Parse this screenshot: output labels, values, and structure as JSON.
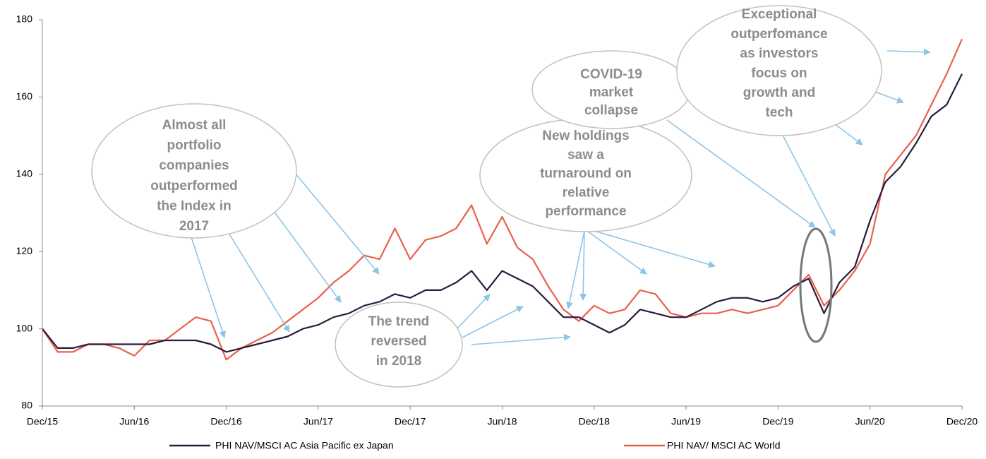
{
  "chart_data": {
    "type": "line",
    "categories": [
      "Dec/15",
      "Jan/16",
      "Feb/16",
      "Mar/16",
      "Apr/16",
      "May/16",
      "Jun/16",
      "Jul/16",
      "Aug/16",
      "Sep/16",
      "Oct/16",
      "Nov/16",
      "Dec/16",
      "Jan/17",
      "Feb/17",
      "Mar/17",
      "Apr/17",
      "May/17",
      "Jun/17",
      "Jul/17",
      "Aug/17",
      "Sep/17",
      "Oct/17",
      "Nov/17",
      "Dec/17",
      "Jan/18",
      "Feb/18",
      "Mar/18",
      "Apr/18",
      "May/18",
      "Jun/18",
      "Jul/18",
      "Aug/18",
      "Sep/18",
      "Oct/18",
      "Nov/18",
      "Dec/18",
      "Jan/19",
      "Feb/19",
      "Mar/19",
      "Apr/19",
      "May/19",
      "Jun/19",
      "Jul/19",
      "Aug/19",
      "Sep/19",
      "Oct/19",
      "Nov/19",
      "Dec/19",
      "Jan/20",
      "Feb/20",
      "Mar/20",
      "Apr/20",
      "May/20",
      "Jun/20",
      "Jul/20",
      "Aug/20",
      "Sep/20",
      "Oct/20",
      "Nov/20",
      "Dec/20"
    ],
    "series": [
      {
        "name": "PHI NAV/MSCI AC Asia Pacific ex Japan",
        "color": "#2b1a3d",
        "values": [
          100,
          95,
          95,
          96,
          96,
          96,
          96,
          96,
          97,
          97,
          97,
          96,
          94,
          95,
          96,
          97,
          98,
          100,
          101,
          103,
          104,
          106,
          107,
          109,
          108,
          110,
          110,
          112,
          115,
          110,
          115,
          113,
          111,
          107,
          103,
          103,
          101,
          99,
          101,
          105,
          104,
          103,
          103,
          105,
          107,
          108,
          108,
          107,
          108,
          111,
          113,
          104,
          112,
          116,
          128,
          138,
          142,
          148,
          155,
          158,
          166
        ]
      },
      {
        "name": "PHI NAV/ MSCI AC World",
        "color": "#e8604c",
        "values": [
          100,
          94,
          94,
          96,
          96,
          95,
          93,
          97,
          97,
          100,
          103,
          102,
          92,
          95,
          97,
          99,
          102,
          105,
          108,
          112,
          115,
          119,
          118,
          126,
          118,
          123,
          124,
          126,
          132,
          122,
          129,
          121,
          118,
          111,
          105,
          102,
          106,
          104,
          105,
          110,
          109,
          104,
          103,
          104,
          104,
          105,
          104,
          105,
          106,
          110,
          114,
          106,
          110,
          115,
          122,
          140,
          145,
          150,
          158,
          166,
          175
        ]
      }
    ],
    "xticks": [
      "Dec/15",
      "Jun/16",
      "Dec/16",
      "Jun/17",
      "Dec/17",
      "Jun/18",
      "Dec/18",
      "Jun/19",
      "Dec/19",
      "Jun/20",
      "Dec/20"
    ],
    "ylim": [
      80,
      180
    ],
    "yticks": [
      80,
      100,
      120,
      140,
      160,
      180
    ],
    "grid": false,
    "annotations": [
      [
        "Almost all",
        "portfolio",
        "companies",
        "outperformed",
        "the Index in",
        "2017"
      ],
      [
        "The trend",
        "reversed",
        "in 2018"
      ],
      [
        "New holdings",
        "saw a",
        "turnaround on",
        "relative",
        "performance"
      ],
      [
        "COVID-19",
        "market",
        "collapse"
      ],
      [
        "Exceptional",
        "outperfomance",
        "as investors",
        "focus on",
        "growth and",
        "tech"
      ]
    ]
  }
}
